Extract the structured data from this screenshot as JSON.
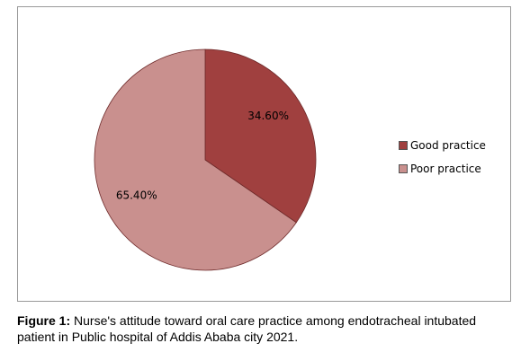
{
  "chart_data": {
    "type": "pie",
    "categories": [
      "Good practice",
      "Poor practice"
    ],
    "values": [
      34.6,
      65.4
    ],
    "data_labels": [
      "34.60%",
      "65.40%"
    ],
    "colors": [
      "#a0403f",
      "#c9908e"
    ],
    "legend_position": "right"
  },
  "caption": {
    "label": "Figure 1:",
    "text": " Nurse's attitude toward oral care practice among endotracheal intubated patient in Public hospital of Addis Ababa city 2021."
  }
}
